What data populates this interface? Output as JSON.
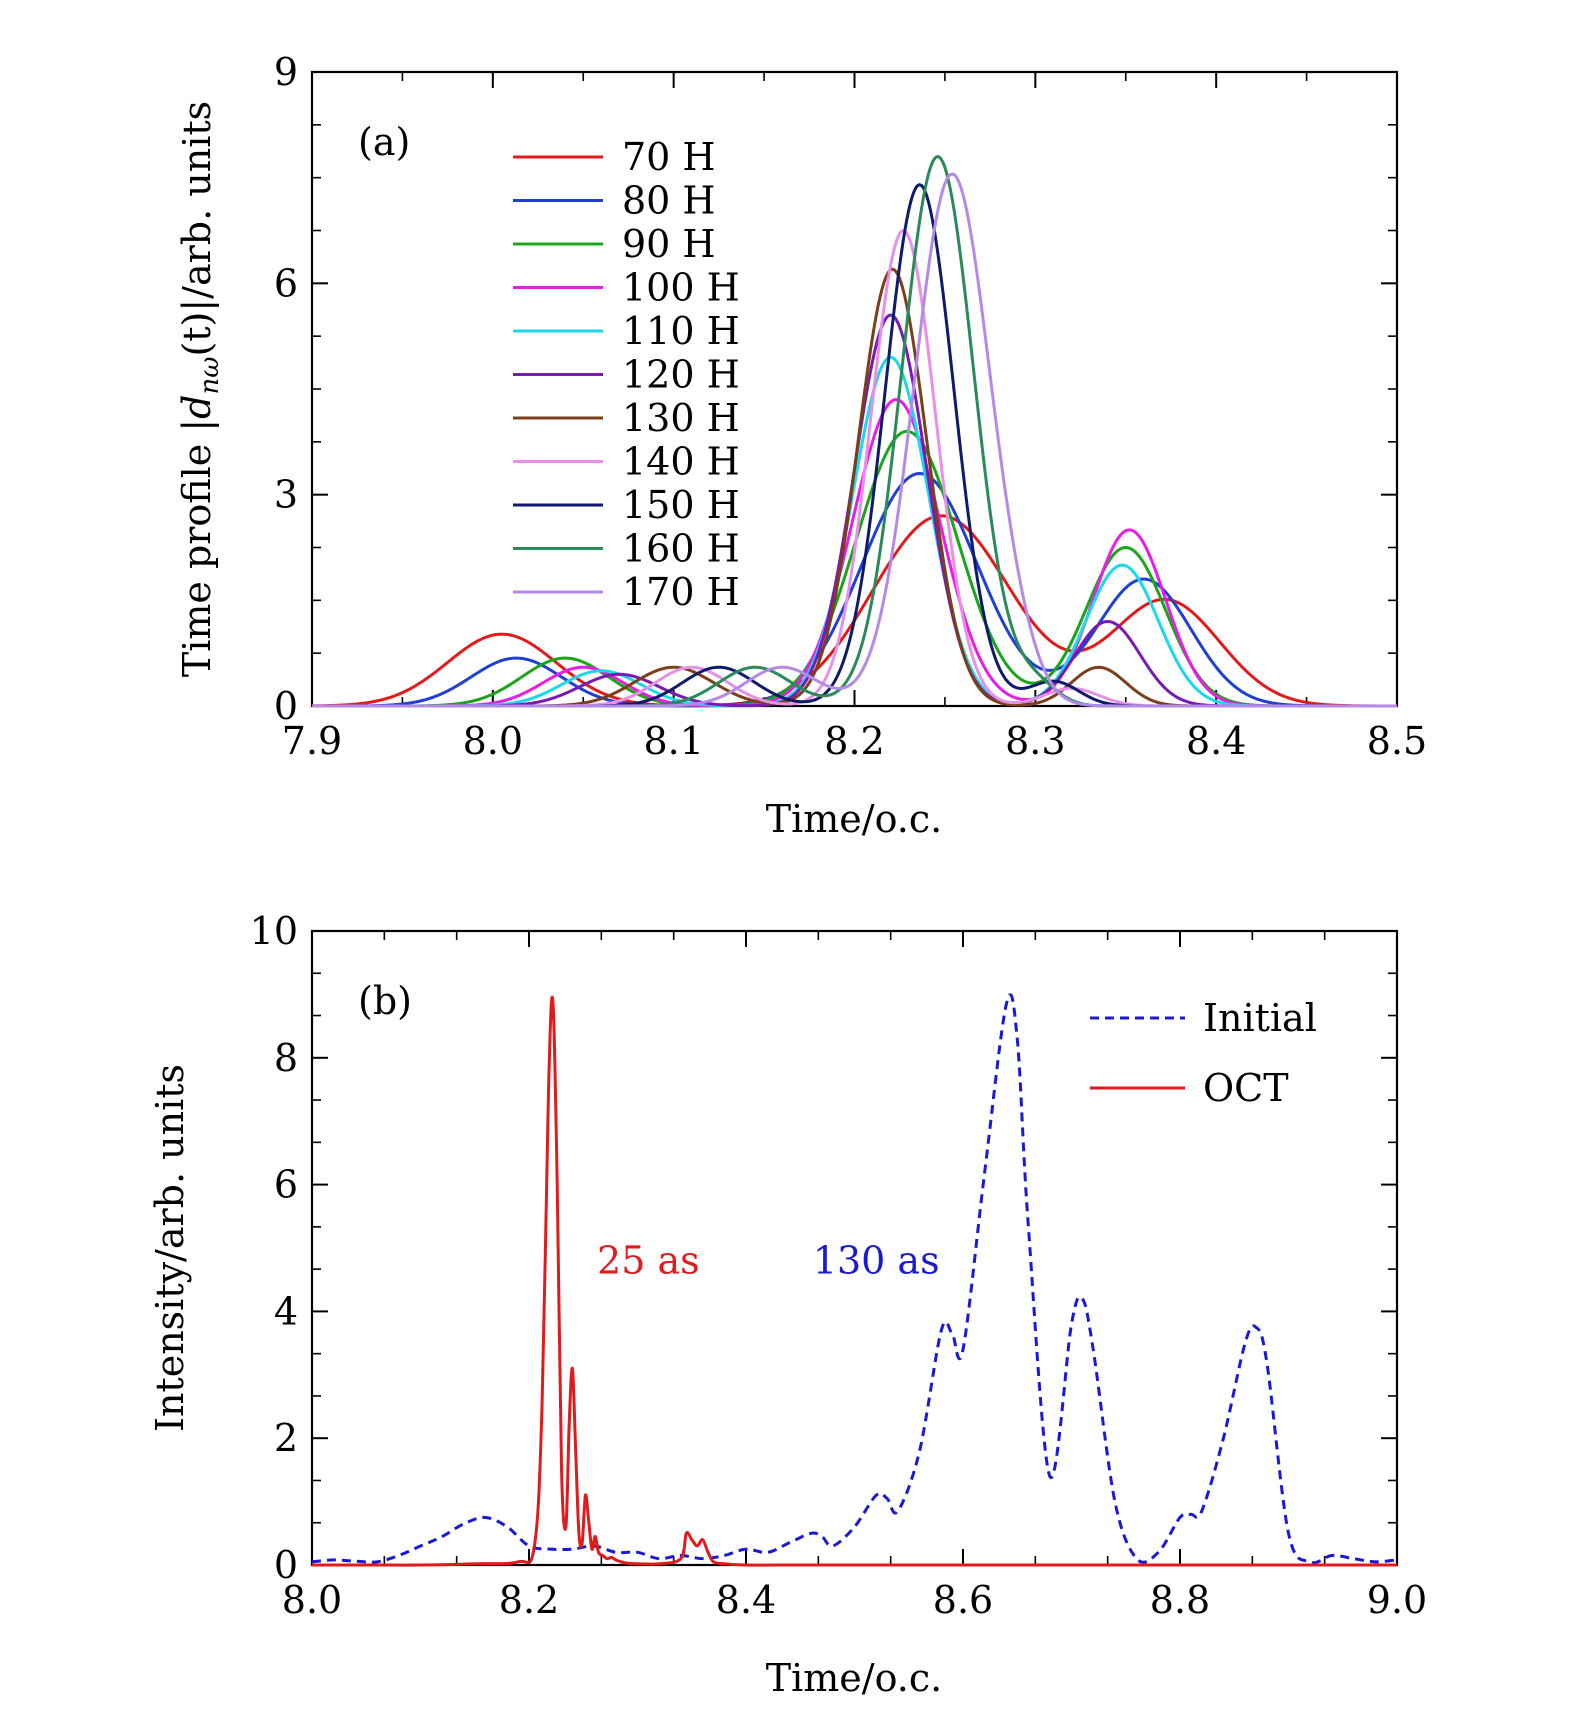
{
  "chart_data": [
    {
      "type": "line",
      "panel_label": "(a)",
      "xlabel": "Time/o.c.",
      "ylabel_parts": {
        "prefix": "Time profile |",
        "d": "d",
        "sub": "nω",
        "suffix": "(t)|/arb. units"
      },
      "xlim": [
        7.9,
        8.5
      ],
      "ylim": [
        0,
        9
      ],
      "xticks": [
        "7.9",
        "8.0",
        "8.1",
        "8.2",
        "8.3",
        "8.4",
        "8.5"
      ],
      "yticks": [
        "0",
        "3",
        "6",
        "9"
      ],
      "legend_position": "top-left",
      "series": [
        {
          "name": "70 H",
          "color": "#e31a1c",
          "peaks": [
            [
              8.005,
              1.02,
              0.03
            ],
            [
              8.248,
              2.7,
              0.038
            ],
            [
              8.372,
              1.5,
              0.03
            ]
          ]
        },
        {
          "name": "80 H",
          "color": "#1f3fd6",
          "peaks": [
            [
              8.013,
              0.68,
              0.025
            ],
            [
              8.236,
              3.3,
              0.032
            ],
            [
              8.36,
              1.8,
              0.026
            ]
          ]
        },
        {
          "name": "90 H",
          "color": "#1aa61a",
          "peaks": [
            [
              8.04,
              0.68,
              0.024
            ],
            [
              8.229,
              3.9,
              0.028
            ],
            [
              8.35,
              2.25,
              0.022
            ]
          ]
        },
        {
          "name": "100 H",
          "color": "#e81ee8",
          "peaks": [
            [
              8.05,
              0.55,
              0.022
            ],
            [
              8.223,
              4.35,
              0.024
            ],
            [
              8.352,
              2.5,
              0.02
            ]
          ]
        },
        {
          "name": "110 H",
          "color": "#1ad9e8",
          "peaks": [
            [
              8.06,
              0.5,
              0.022
            ],
            [
              8.22,
              4.95,
              0.021
            ],
            [
              8.348,
              2.0,
              0.02
            ]
          ]
        },
        {
          "name": "120 H",
          "color": "#7a1ab4",
          "peaks": [
            [
              8.07,
              0.45,
              0.022
            ],
            [
              8.22,
              5.55,
              0.02
            ],
            [
              8.34,
              1.2,
              0.018
            ]
          ]
        },
        {
          "name": "130 H",
          "color": "#7b3f1a",
          "peaks": [
            [
              8.1,
              0.55,
              0.022
            ],
            [
              8.221,
              6.2,
              0.019
            ],
            [
              8.335,
              0.55,
              0.015
            ]
          ]
        },
        {
          "name": "140 H",
          "color": "#e890e8",
          "peaks": [
            [
              8.11,
              0.55,
              0.02
            ],
            [
              8.227,
              6.75,
              0.018
            ],
            [
              8.32,
              0.25,
              0.015
            ]
          ]
        },
        {
          "name": "150 H",
          "color": "#101a6a",
          "peaks": [
            [
              8.125,
              0.55,
              0.02
            ],
            [
              8.236,
              7.4,
              0.019
            ],
            [
              8.31,
              0.35,
              0.014
            ]
          ]
        },
        {
          "name": "160 H",
          "color": "#2a8a5a",
          "peaks": [
            [
              8.145,
              0.55,
              0.02
            ],
            [
              8.246,
              7.8,
              0.02
            ],
            [
              8.3,
              0.3,
              0.012
            ]
          ]
        },
        {
          "name": "170 H",
          "color": "#b38ae8",
          "peaks": [
            [
              8.16,
              0.55,
              0.02
            ],
            [
              8.254,
              7.55,
              0.021
            ],
            [
              8.29,
              0.25,
              0.012
            ]
          ]
        }
      ]
    },
    {
      "type": "line",
      "panel_label": "(b)",
      "xlabel": "Time/o.c.",
      "ylabel": "Intensity/arb. units",
      "xlim": [
        8.0,
        9.0
      ],
      "ylim": [
        0,
        10
      ],
      "xticks": [
        "8.0",
        "8.2",
        "8.4",
        "8.6",
        "8.8",
        "9.0"
      ],
      "yticks": [
        "0",
        "2",
        "4",
        "6",
        "8",
        "10"
      ],
      "legend_position": "top-right",
      "annotations": [
        {
          "text": "25 as",
          "color": "#e31a1c",
          "x": 8.31,
          "y": 4.6
        },
        {
          "text": "130 as",
          "color": "#1a1ad6",
          "x": 8.52,
          "y": 4.6
        }
      ],
      "series": [
        {
          "name": "Initial",
          "color": "#1a1ad6",
          "style": "dashed",
          "x": [
            8.0,
            8.02,
            8.04,
            8.06,
            8.08,
            8.1,
            8.12,
            8.14,
            8.16,
            8.18,
            8.2,
            8.22,
            8.24,
            8.26,
            8.28,
            8.3,
            8.32,
            8.34,
            8.36,
            8.38,
            8.4,
            8.42,
            8.44,
            8.46,
            8.47,
            8.48,
            8.5,
            8.52,
            8.53,
            8.54,
            8.56,
            8.58,
            8.59,
            8.6,
            8.62,
            8.64,
            8.65,
            8.66,
            8.68,
            8.7,
            8.71,
            8.72,
            8.74,
            8.76,
            8.78,
            8.8,
            8.81,
            8.82,
            8.84,
            8.86,
            8.87,
            8.88,
            8.9,
            8.92,
            8.94,
            8.96,
            8.98,
            9.0
          ],
          "y": [
            0.05,
            0.08,
            0.06,
            0.05,
            0.15,
            0.3,
            0.45,
            0.65,
            0.75,
            0.6,
            0.3,
            0.25,
            0.25,
            0.3,
            0.2,
            0.2,
            0.1,
            0.15,
            0.1,
            0.15,
            0.25,
            0.2,
            0.35,
            0.5,
            0.45,
            0.3,
            0.6,
            1.1,
            1.05,
            0.85,
            1.8,
            3.7,
            3.65,
            3.4,
            6.2,
            8.85,
            8.3,
            5.4,
            1.4,
            3.8,
            4.2,
            3.4,
            1.0,
            0.1,
            0.2,
            0.75,
            0.8,
            0.85,
            2.0,
            3.5,
            3.75,
            3.2,
            0.5,
            0.05,
            0.15,
            0.1,
            0.05,
            0.08
          ]
        },
        {
          "name": "OCT",
          "color": "#e31a1c",
          "style": "solid",
          "x": [
            8.0,
            8.05,
            8.1,
            8.15,
            8.19,
            8.205,
            8.212,
            8.218,
            8.222,
            8.226,
            8.23,
            8.234,
            8.237,
            8.24,
            8.243,
            8.246,
            8.249,
            8.252,
            8.255,
            8.258,
            8.261,
            8.264,
            8.268,
            8.272,
            8.276,
            8.28,
            8.285,
            8.29,
            8.3,
            8.32,
            8.34,
            8.345,
            8.35,
            8.355,
            8.36,
            8.365,
            8.37,
            8.38,
            8.4,
            8.45,
            8.5,
            8.6,
            8.7,
            8.8,
            8.9,
            9.0
          ],
          "y": [
            0.0,
            0.0,
            0.0,
            0.02,
            0.05,
            0.3,
            2.5,
            7.5,
            8.9,
            6.0,
            1.5,
            0.6,
            2.2,
            3.1,
            1.8,
            0.5,
            0.35,
            1.1,
            0.7,
            0.25,
            0.45,
            0.2,
            0.15,
            0.1,
            0.12,
            0.08,
            0.05,
            0.03,
            0.02,
            0.02,
            0.1,
            0.5,
            0.4,
            0.3,
            0.4,
            0.2,
            0.05,
            0.02,
            0.0,
            0.0,
            0.0,
            0.0,
            0.0,
            0.0,
            0.0,
            0.0
          ]
        }
      ]
    }
  ]
}
